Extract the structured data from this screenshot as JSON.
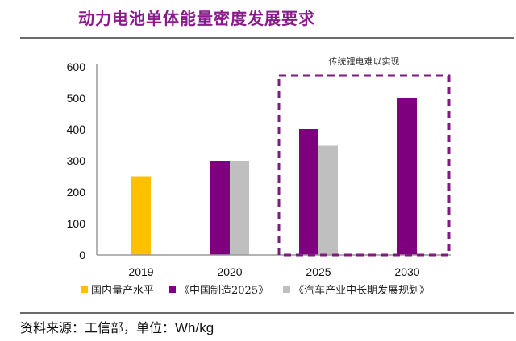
{
  "header": {
    "title": "动力电池单体能量密度发展要求"
  },
  "chart_data": {
    "type": "bar",
    "title": "动力电池单体能量密度发展要求",
    "xlabel": "",
    "ylabel": "",
    "ylim": [
      0,
      600
    ],
    "yticks": [
      0,
      100,
      200,
      300,
      400,
      500,
      600
    ],
    "ytick_labels": [
      "0",
      "100",
      "200",
      "300",
      "400",
      "500",
      "600"
    ],
    "categories": [
      "2019",
      "2020",
      "2025",
      "2030"
    ],
    "series": [
      {
        "name": "国内量产水平",
        "color": "#FFC000",
        "values": [
          250,
          null,
          null,
          null
        ]
      },
      {
        "name": "《中国制造2025》",
        "color": "#7F007F",
        "values": [
          null,
          300,
          400,
          500
        ]
      },
      {
        "name": "《汽车产业中长期发展规划》",
        "color": "#BFBFBF",
        "values": [
          null,
          300,
          350,
          null
        ]
      }
    ],
    "grid": false,
    "legend_position": "bottom",
    "annotation": {
      "text": "传统锂电难以实现",
      "highlight_categories": [
        "2025",
        "2030"
      ],
      "style": "dashed-box",
      "color": "#7F1A7F"
    }
  },
  "legend": {
    "items": [
      {
        "label": "国内量产水平",
        "color": "#FFC000"
      },
      {
        "label": "《中国制造2025》",
        "color": "#7F007F"
      },
      {
        "label": "《汽车产业中长期发展规划》",
        "color": "#BFBFBF"
      }
    ]
  },
  "footer": {
    "source_prefix": "资料来源：工信部，单位：",
    "unit": "Wh/kg"
  }
}
